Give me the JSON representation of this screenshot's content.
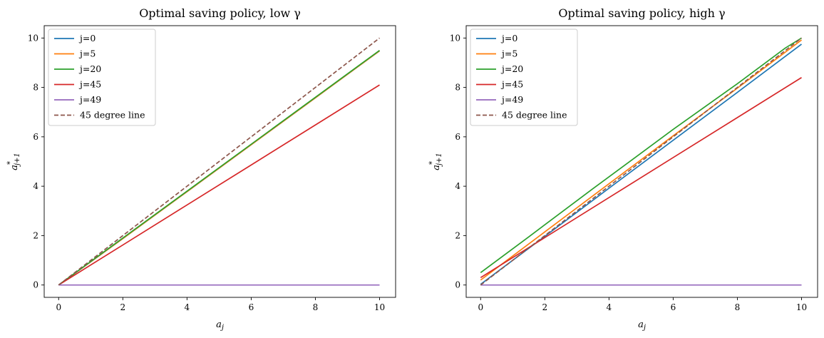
{
  "chart_data": [
    {
      "type": "line",
      "title": "Optimal saving policy, low γ",
      "xlabel": "a_j",
      "ylabel": "a*_{j+1}",
      "xlim": [
        -0.45,
        10.5
      ],
      "ylim": [
        -0.5,
        10.5
      ],
      "xticks": [
        "0",
        "2",
        "4",
        "6",
        "8",
        "10"
      ],
      "yticks": [
        "0",
        "2",
        "4",
        "6",
        "8",
        "10"
      ],
      "legend_position": "upper-left",
      "grid": false,
      "series": [
        {
          "name": "j=0",
          "color": "#1f77b4",
          "dash": "solid",
          "x": [
            0,
            2,
            4,
            6,
            8,
            10
          ],
          "y": [
            0,
            1.88,
            3.78,
            5.68,
            7.58,
            9.48
          ]
        },
        {
          "name": "j=5",
          "color": "#ff7f0e",
          "dash": "solid",
          "x": [
            0,
            2,
            4,
            6,
            8,
            10
          ],
          "y": [
            0,
            1.88,
            3.78,
            5.68,
            7.58,
            9.48
          ]
        },
        {
          "name": "j=20",
          "color": "#2ca02c",
          "dash": "solid",
          "x": [
            0,
            2,
            4,
            6,
            8,
            10
          ],
          "y": [
            0,
            1.9,
            3.8,
            5.7,
            7.6,
            9.5
          ]
        },
        {
          "name": "j=45",
          "color": "#d62728",
          "dash": "solid",
          "x": [
            0,
            2,
            4,
            6,
            8,
            10
          ],
          "y": [
            0,
            1.62,
            3.24,
            4.86,
            6.48,
            8.1
          ]
        },
        {
          "name": "j=49",
          "color": "#9467bd",
          "dash": "solid",
          "x": [
            0,
            10
          ],
          "y": [
            0,
            0
          ]
        },
        {
          "name": "45 degree line",
          "color": "#8c564b",
          "dash": "dashed",
          "x": [
            0,
            10
          ],
          "y": [
            0,
            10
          ]
        }
      ]
    },
    {
      "type": "line",
      "title": "Optimal saving policy, high γ",
      "xlabel": "a_j",
      "ylabel": "a*_{j+1}",
      "xlim": [
        -0.45,
        10.5
      ],
      "ylim": [
        -0.5,
        10.5
      ],
      "xticks": [
        "0",
        "2",
        "4",
        "6",
        "8",
        "10"
      ],
      "yticks": [
        "0",
        "2",
        "4",
        "6",
        "8",
        "10"
      ],
      "legend_position": "upper-left",
      "grid": false,
      "series": [
        {
          "name": "j=0",
          "color": "#1f77b4",
          "dash": "solid",
          "x": [
            0,
            2,
            4,
            6,
            8,
            10
          ],
          "y": [
            0.03,
            1.97,
            3.92,
            5.86,
            7.8,
            9.75
          ]
        },
        {
          "name": "j=5",
          "color": "#ff7f0e",
          "dash": "solid",
          "x": [
            0,
            2,
            4,
            6,
            8,
            10
          ],
          "y": [
            0.2,
            2.15,
            4.1,
            6.04,
            7.97,
            9.92
          ]
        },
        {
          "name": "j=20",
          "color": "#2ca02c",
          "dash": "solid",
          "x": [
            0,
            1.5,
            3.5,
            6,
            8,
            9.5,
            10
          ],
          "y": [
            0.5,
            1.95,
            3.9,
            6.3,
            8.15,
            9.6,
            10
          ]
        },
        {
          "name": "j=45",
          "color": "#d62728",
          "dash": "solid",
          "x": [
            0,
            2,
            4,
            6,
            8,
            10
          ],
          "y": [
            0.3,
            1.92,
            3.54,
            5.16,
            6.78,
            8.4
          ]
        },
        {
          "name": "j=49",
          "color": "#9467bd",
          "dash": "solid",
          "x": [
            0,
            10
          ],
          "y": [
            0,
            0
          ]
        },
        {
          "name": "45 degree line",
          "color": "#8c564b",
          "dash": "dashed",
          "x": [
            0,
            10
          ],
          "y": [
            0,
            10
          ]
        }
      ]
    }
  ]
}
